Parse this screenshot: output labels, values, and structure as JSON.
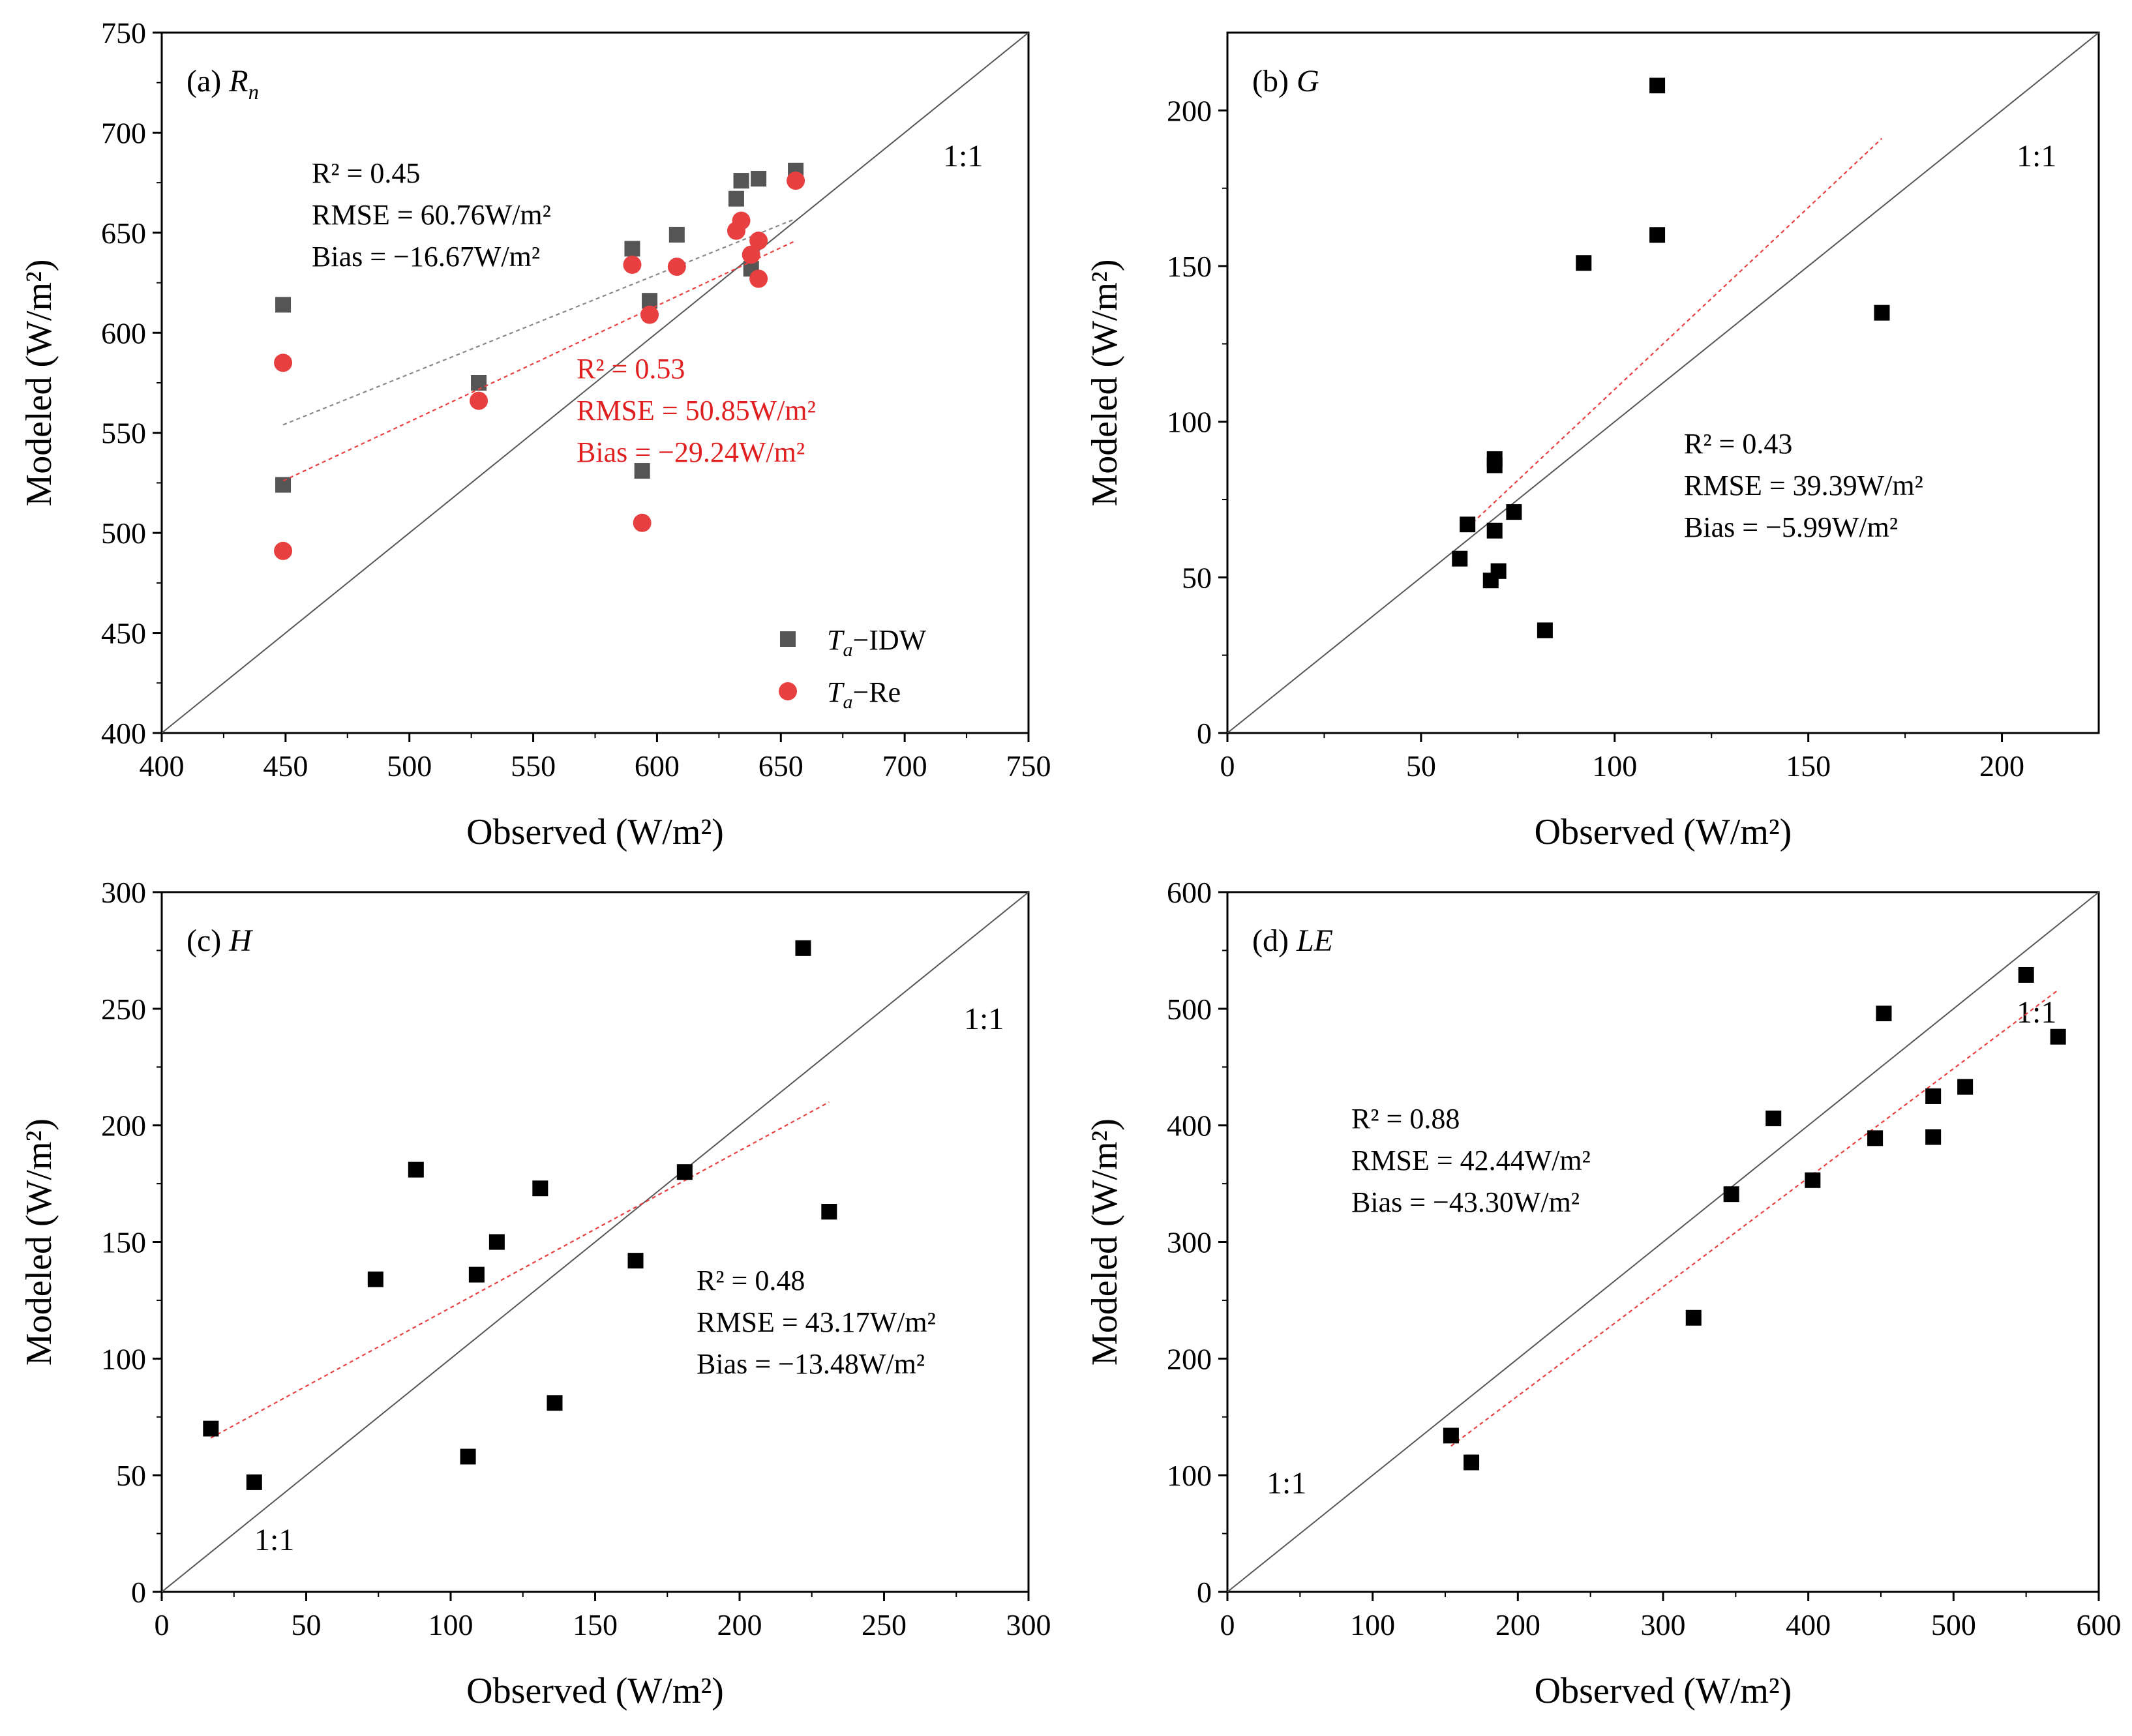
{
  "chart_data": [
    {
      "id": "a",
      "type": "scatter",
      "panel_label": "(a) ",
      "panel_var": "R",
      "panel_sub": "n",
      "xlabel": "Observed (W/m²)",
      "ylabel": "Modeled (W/m²)",
      "xlim": [
        400,
        750
      ],
      "ylim": [
        400,
        750
      ],
      "xticks": [
        400,
        450,
        500,
        550,
        600,
        650,
        700,
        750
      ],
      "yticks": [
        400,
        450,
        500,
        550,
        600,
        650,
        700,
        750
      ],
      "oneone_label": "1:1",
      "series": [
        {
          "name": "Ta-IDW",
          "legend_var": "T",
          "legend_sub": "a",
          "legend_suffix": "−IDW",
          "marker": "square",
          "color": "#555555",
          "x": [
            449,
            449,
            528,
            590,
            597,
            608,
            632,
            634,
            638,
            641,
            656
          ],
          "y": [
            614,
            524,
            575,
            642,
            616,
            649,
            667,
            676,
            632,
            677,
            681
          ],
          "fit": {
            "x0": 449,
            "y0": 554,
            "x1": 656,
            "y1": 657,
            "color": "#888888"
          },
          "stats": [
            "R² = 0.45",
            "RMSE = 60.76W/m²",
            "Bias = −16.67W/m²"
          ],
          "stats_color": "#000000"
        },
        {
          "name": "Ta-Re",
          "legend_var": "T",
          "legend_sub": "a",
          "legend_suffix": "−Re",
          "marker": "circle",
          "color": "#e84040",
          "x": [
            449,
            449,
            528,
            590,
            597,
            608,
            632,
            634,
            638,
            641,
            656
          ],
          "y": [
            585,
            491,
            566,
            634,
            609,
            633,
            651,
            656,
            639,
            646,
            676
          ],
          "fit": {
            "x0": 449,
            "y0": 526,
            "x1": 656,
            "y1": 646,
            "color": "#e84040"
          },
          "stats": [
            "R² = 0.53",
            "RMSE = 50.85W/m²",
            "Bias = −29.24W/m²"
          ],
          "stats_color": "#e02020"
        }
      ],
      "extra_points": [
        {
          "series": 0,
          "x": 594,
          "y": 531
        },
        {
          "series": 1,
          "x": 594,
          "y": 505
        },
        {
          "series": 1,
          "x": 641,
          "y": 627
        }
      ],
      "legend_position": "bottom-right"
    },
    {
      "id": "b",
      "type": "scatter",
      "panel_label": "(b) ",
      "panel_var": "G",
      "panel_sub": "",
      "xlabel": "Observed (W/m²)",
      "ylabel": "Modeled (W/m²)",
      "xlim": [
        0,
        225
      ],
      "ylim": [
        0,
        225
      ],
      "xticks": [
        0,
        50,
        100,
        150,
        200
      ],
      "yticks": [
        0,
        50,
        100,
        150,
        200
      ],
      "oneone_label": "1:1",
      "series": [
        {
          "name": "points",
          "marker": "square",
          "color": "#000000",
          "x": [
            60,
            62,
            68,
            69,
            69,
            69,
            70,
            74,
            82,
            92,
            111,
            111,
            169
          ],
          "y": [
            56,
            67,
            49,
            86,
            88,
            65,
            52,
            71,
            33,
            151,
            208,
            160,
            135
          ],
          "fit": {
            "x0": 62,
            "y0": 66,
            "x1": 169,
            "y1": 191,
            "color": "#e84040"
          },
          "stats": [
            "R² = 0.43",
            "RMSE = 39.39W/m²",
            "Bias = −5.99W/m²"
          ],
          "stats_color": "#000000"
        }
      ]
    },
    {
      "id": "c",
      "type": "scatter",
      "panel_label": "(c) ",
      "panel_var": "H",
      "panel_sub": "",
      "xlabel": "Observed (W/m²)",
      "ylabel": "Modeled (W/m²)",
      "xlim": [
        0,
        300
      ],
      "ylim": [
        0,
        300
      ],
      "xticks": [
        0,
        50,
        100,
        150,
        200,
        250,
        300
      ],
      "yticks": [
        0,
        50,
        100,
        150,
        200,
        250,
        300
      ],
      "oneone_label": "1:1",
      "series": [
        {
          "name": "points",
          "marker": "square",
          "color": "#000000",
          "x": [
            17,
            32,
            74,
            88,
            106,
            109,
            116,
            131,
            136,
            164,
            181,
            222,
            231
          ],
          "y": [
            70,
            47,
            134,
            181,
            58,
            136,
            150,
            173,
            81,
            142,
            180,
            276,
            163
          ],
          "fit": {
            "x0": 17,
            "y0": 66,
            "x1": 231,
            "y1": 210,
            "color": "#e84040"
          },
          "stats": [
            "R² = 0.48",
            "RMSE = 43.17W/m²",
            "Bias = −13.48W/m²"
          ],
          "stats_color": "#000000"
        }
      ]
    },
    {
      "id": "d",
      "type": "scatter",
      "panel_label": "(d) ",
      "panel_var": "LE",
      "panel_sub": "",
      "xlabel": "Observed (W/m²)",
      "ylabel": "Modeled (W/m²)",
      "xlim": [
        0,
        600
      ],
      "ylim": [
        0,
        600
      ],
      "xticks": [
        0,
        100,
        200,
        300,
        400,
        500,
        600
      ],
      "yticks": [
        0,
        100,
        200,
        300,
        400,
        500,
        600
      ],
      "oneone_label": "1:1",
      "series": [
        {
          "name": "points",
          "marker": "square",
          "color": "#000000",
          "x": [
            154,
            168,
            321,
            347,
            376,
            403,
            446,
            452,
            486,
            486,
            508,
            550,
            572
          ],
          "y": [
            134,
            111,
            235,
            341,
            406,
            353,
            389,
            496,
            390,
            425,
            433,
            529,
            476
          ],
          "fit": {
            "x0": 154,
            "y0": 125,
            "x1": 572,
            "y1": 516,
            "color": "#e84040"
          },
          "stats": [
            "R² = 0.88",
            "RMSE = 42.44W/m²",
            "Bias = −43.30W/m²"
          ],
          "stats_color": "#000000"
        }
      ]
    }
  ]
}
